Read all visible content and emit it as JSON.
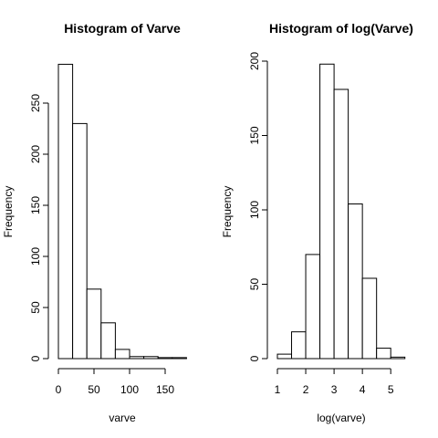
{
  "chart_data": [
    {
      "type": "bar",
      "title": "Histogram of Varve",
      "xlabel": "varve",
      "ylabel": "Frequency",
      "bins": [
        [
          0,
          20
        ],
        [
          20,
          40
        ],
        [
          40,
          60
        ],
        [
          60,
          80
        ],
        [
          80,
          100
        ],
        [
          100,
          120
        ],
        [
          120,
          140
        ],
        [
          140,
          160
        ],
        [
          160,
          180
        ]
      ],
      "values": [
        288,
        230,
        68,
        35,
        9,
        2,
        2,
        1,
        1
      ],
      "xticks": [
        0,
        50,
        100,
        150
      ],
      "xtick_labels": [
        "0",
        "50",
        "100",
        "150"
      ],
      "yticks": [
        0,
        50,
        100,
        150,
        200,
        250
      ],
      "ytick_labels": [
        "0",
        "50",
        "100",
        "150",
        "200",
        "250"
      ],
      "xlim": [
        0,
        180
      ],
      "ylim": [
        0,
        288
      ]
    },
    {
      "type": "bar",
      "title": "Histogram of log(Varve)",
      "xlabel": "log(varve)",
      "ylabel": "Frequency",
      "bins": [
        [
          1,
          1.5
        ],
        [
          1.5,
          2
        ],
        [
          2,
          2.5
        ],
        [
          2.5,
          3
        ],
        [
          3,
          3.5
        ],
        [
          3.5,
          4
        ],
        [
          4,
          4.5
        ],
        [
          4.5,
          5
        ],
        [
          5,
          5.5
        ]
      ],
      "values": [
        3,
        18,
        70,
        198,
        181,
        104,
        54,
        7,
        1
      ],
      "xticks": [
        1,
        2,
        3,
        4,
        5
      ],
      "xtick_labels": [
        "1",
        "2",
        "3",
        "4",
        "5"
      ],
      "yticks": [
        0,
        50,
        100,
        150,
        200
      ],
      "ytick_labels": [
        "0",
        "50",
        "100",
        "150",
        "200"
      ],
      "xlim": [
        1,
        5.5
      ],
      "ylim": [
        0,
        198
      ]
    }
  ]
}
